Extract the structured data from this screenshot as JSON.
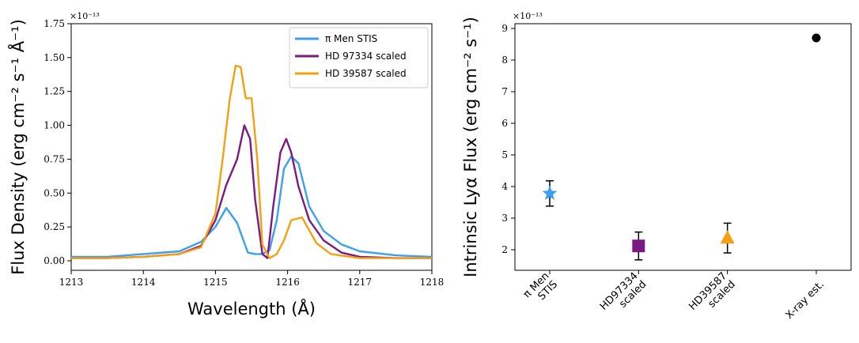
{
  "chart_data": [
    {
      "type": "line",
      "xlabel": "Wavelength (Å)",
      "ylabel": "Flux Density (erg cm⁻² s⁻¹ Å⁻¹)",
      "xlim": [
        1213,
        1218
      ],
      "ylim": [
        -0.07,
        1.75
      ],
      "y_multiplier": "×10⁻¹³",
      "x_ticks": [
        "1213",
        "1214",
        "1215",
        "1216",
        "1217",
        "1218"
      ],
      "y_ticks": [
        "0.00",
        "0.25",
        "0.50",
        "0.75",
        "1.00",
        "1.25",
        "1.50",
        "1.75"
      ],
      "grid": false,
      "legend_position": "top-right",
      "series": [
        {
          "name": "π Men STIS",
          "color": "#3c9ff0",
          "x": [
            1213.0,
            1213.5,
            1214.0,
            1214.5,
            1214.8,
            1215.0,
            1215.15,
            1215.3,
            1215.45,
            1215.55,
            1215.65,
            1215.75,
            1215.85,
            1215.95,
            1216.05,
            1216.15,
            1216.3,
            1216.5,
            1216.75,
            1217.0,
            1217.5,
            1218.0
          ],
          "y": [
            0.03,
            0.03,
            0.05,
            0.07,
            0.14,
            0.25,
            0.39,
            0.28,
            0.06,
            0.05,
            0.05,
            0.08,
            0.3,
            0.68,
            0.77,
            0.72,
            0.4,
            0.22,
            0.12,
            0.07,
            0.04,
            0.03
          ]
        },
        {
          "name": "HD 97334 scaled",
          "color": "#7b1a82",
          "x": [
            1213.0,
            1213.5,
            1214.0,
            1214.5,
            1214.8,
            1215.0,
            1215.15,
            1215.3,
            1215.4,
            1215.48,
            1215.55,
            1215.65,
            1215.72,
            1215.8,
            1215.9,
            1215.98,
            1216.05,
            1216.15,
            1216.3,
            1216.5,
            1216.75,
            1217.0,
            1217.5,
            1218.0
          ],
          "y": [
            0.02,
            0.02,
            0.03,
            0.05,
            0.11,
            0.3,
            0.56,
            0.75,
            1.0,
            0.9,
            0.45,
            0.05,
            0.02,
            0.4,
            0.8,
            0.9,
            0.8,
            0.55,
            0.3,
            0.15,
            0.06,
            0.03,
            0.02,
            0.02
          ]
        },
        {
          "name": "HD 39587 scaled",
          "color": "#f5a012",
          "x": [
            1213.0,
            1213.5,
            1214.0,
            1214.5,
            1214.8,
            1215.0,
            1215.1,
            1215.2,
            1215.28,
            1215.35,
            1215.42,
            1215.5,
            1215.58,
            1215.65,
            1215.75,
            1215.85,
            1215.95,
            1216.05,
            1216.2,
            1216.4,
            1216.6,
            1217.0,
            1217.5,
            1218.0
          ],
          "y": [
            0.02,
            0.02,
            0.03,
            0.05,
            0.1,
            0.35,
            0.75,
            1.2,
            1.44,
            1.43,
            1.2,
            1.2,
            0.75,
            0.12,
            0.02,
            0.05,
            0.15,
            0.3,
            0.32,
            0.13,
            0.05,
            0.02,
            0.02,
            0.02
          ]
        }
      ]
    },
    {
      "type": "scatter",
      "ylabel": "Intrinsic Lyα Flux (erg cm⁻² s⁻¹)",
      "ylim": [
        1.35,
        9.15
      ],
      "y_multiplier": "×10⁻¹³",
      "y_ticks": [
        "2",
        "3",
        "4",
        "5",
        "6",
        "7",
        "8",
        "9"
      ],
      "grid": false,
      "categories": [
        [
          "π Men",
          "STIS"
        ],
        [
          "HD97334",
          "scaled"
        ],
        [
          "HD39587",
          "scaled"
        ],
        [
          "X-ray est."
        ]
      ],
      "points": [
        {
          "value": 3.78,
          "err_low": 0.4,
          "err_high": 0.4,
          "marker": "star",
          "color": "#3c9ff0"
        },
        {
          "value": 2.12,
          "err_low": 0.44,
          "err_high": 0.44,
          "marker": "square",
          "color": "#7b1a82"
        },
        {
          "value": 2.37,
          "err_low": 0.47,
          "err_high": 0.47,
          "marker": "triangle",
          "color": "#f5a012"
        },
        {
          "value": 8.7,
          "err_low": 0,
          "err_high": 0,
          "marker": "circle",
          "color": "#000000"
        }
      ]
    }
  ]
}
